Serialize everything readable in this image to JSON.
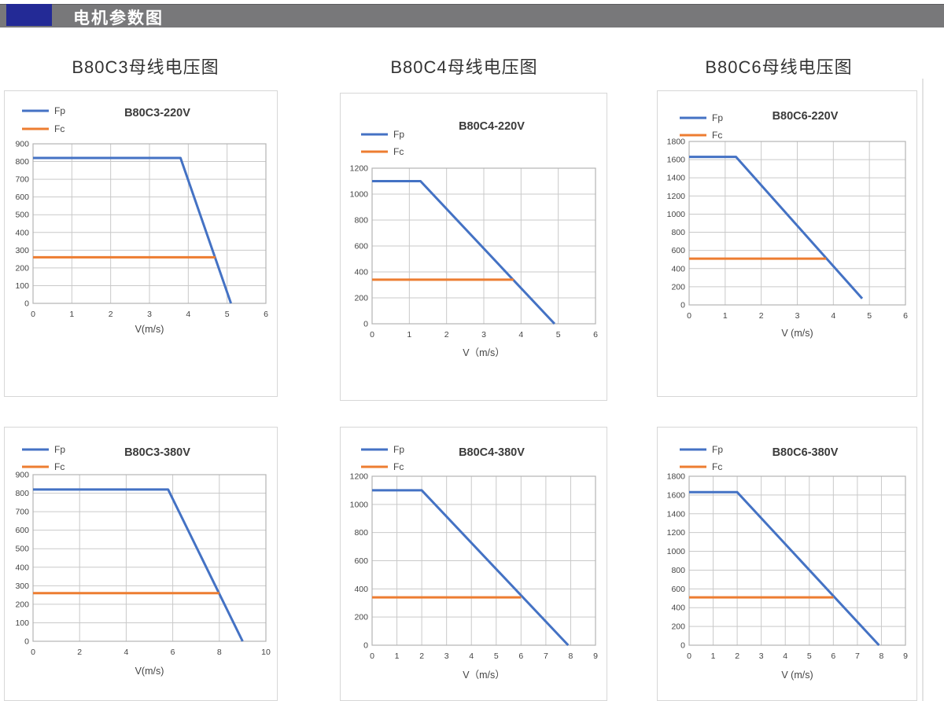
{
  "header": {
    "title": "电机参数图",
    "bar_color": "#78787a",
    "accent_color": "#232a96"
  },
  "columns": [
    {
      "title": "B80C3母线电压图"
    },
    {
      "title": "B80C4母线电压图"
    },
    {
      "title": "B80C6母线电压图"
    }
  ],
  "colors": {
    "fp": "#4472C4",
    "fc": "#ED7D31",
    "grid": "#c9c9c9",
    "plot_border": "#b3b3b3",
    "text": "#444444"
  },
  "chart_data": [
    {
      "type": "line",
      "title": "B80C3-220V",
      "xlabel": "V(m/s)",
      "legend": [
        "Fp",
        "Fc"
      ],
      "xlim": [
        0,
        6
      ],
      "xstep": 1,
      "ylim": [
        0,
        900
      ],
      "ystep": 100,
      "grid": true,
      "legend_position": "top-left",
      "series": [
        {
          "name": "Fp",
          "color": "#4472C4",
          "points": [
            [
              0,
              820
            ],
            [
              3.8,
              820
            ],
            [
              5.1,
              0
            ]
          ]
        },
        {
          "name": "Fc",
          "color": "#ED7D31",
          "points": [
            [
              0,
              260
            ],
            [
              4.7,
              260
            ]
          ]
        }
      ]
    },
    {
      "type": "line",
      "title": "B80C4-220V",
      "xlabel": "V（m/s）",
      "legend": [
        "Fp",
        "Fc"
      ],
      "xlim": [
        0,
        6
      ],
      "xstep": 1,
      "ylim": [
        0,
        1200
      ],
      "ystep": 200,
      "grid": true,
      "legend_position": "top-left",
      "series": [
        {
          "name": "Fp",
          "color": "#4472C4",
          "points": [
            [
              0,
              1100
            ],
            [
              1.3,
              1100
            ],
            [
              4.9,
              0
            ]
          ]
        },
        {
          "name": "Fc",
          "color": "#ED7D31",
          "points": [
            [
              0,
              340
            ],
            [
              3.8,
              340
            ]
          ]
        }
      ]
    },
    {
      "type": "line",
      "title": "B80C6-220V",
      "xlabel": "V (m/s)",
      "legend": [
        "Fp",
        "Fc"
      ],
      "xlim": [
        0,
        6
      ],
      "xstep": 1,
      "ylim": [
        0,
        1800
      ],
      "ystep": 200,
      "grid": true,
      "legend_position": "top-left",
      "series": [
        {
          "name": "Fp",
          "color": "#4472C4",
          "points": [
            [
              0,
              1630
            ],
            [
              1.3,
              1630
            ],
            [
              4.8,
              70
            ]
          ]
        },
        {
          "name": "Fc",
          "color": "#ED7D31",
          "points": [
            [
              0,
              510
            ],
            [
              3.8,
              510
            ]
          ]
        }
      ]
    },
    {
      "type": "line",
      "title": "B80C3-380V",
      "xlabel": "V(m/s)",
      "legend": [
        "Fp",
        "Fc"
      ],
      "xlim": [
        0,
        10
      ],
      "xstep": 2,
      "ylim": [
        0,
        900
      ],
      "ystep": 100,
      "grid": true,
      "legend_position": "top-left",
      "series": [
        {
          "name": "Fp",
          "color": "#4472C4",
          "points": [
            [
              0,
              820
            ],
            [
              5.8,
              820
            ],
            [
              9,
              0
            ]
          ]
        },
        {
          "name": "Fc",
          "color": "#ED7D31",
          "points": [
            [
              0,
              260
            ],
            [
              8,
              260
            ]
          ]
        }
      ]
    },
    {
      "type": "line",
      "title": "B80C4-380V",
      "xlabel": "V（m/s）",
      "legend": [
        "Fp",
        "Fc"
      ],
      "xlim": [
        0,
        9
      ],
      "xstep": 1,
      "ylim": [
        0,
        1200
      ],
      "ystep": 200,
      "grid": true,
      "legend_position": "top-left",
      "series": [
        {
          "name": "Fp",
          "color": "#4472C4",
          "points": [
            [
              0,
              1100
            ],
            [
              2,
              1100
            ],
            [
              7.9,
              0
            ]
          ]
        },
        {
          "name": "Fc",
          "color": "#ED7D31",
          "points": [
            [
              0,
              340
            ],
            [
              6,
              340
            ]
          ]
        }
      ]
    },
    {
      "type": "line",
      "title": "B80C6-380V",
      "xlabel": "V (m/s)",
      "legend": [
        "Fp",
        "Fc"
      ],
      "xlim": [
        0,
        9
      ],
      "xstep": 1,
      "ylim": [
        0,
        1800
      ],
      "ystep": 200,
      "grid": true,
      "legend_position": "top-left",
      "series": [
        {
          "name": "Fp",
          "color": "#4472C4",
          "points": [
            [
              0,
              1630
            ],
            [
              2,
              1630
            ],
            [
              7.9,
              0
            ]
          ]
        },
        {
          "name": "Fc",
          "color": "#ED7D31",
          "points": [
            [
              0,
              510
            ],
            [
              6,
              510
            ]
          ]
        }
      ]
    }
  ]
}
